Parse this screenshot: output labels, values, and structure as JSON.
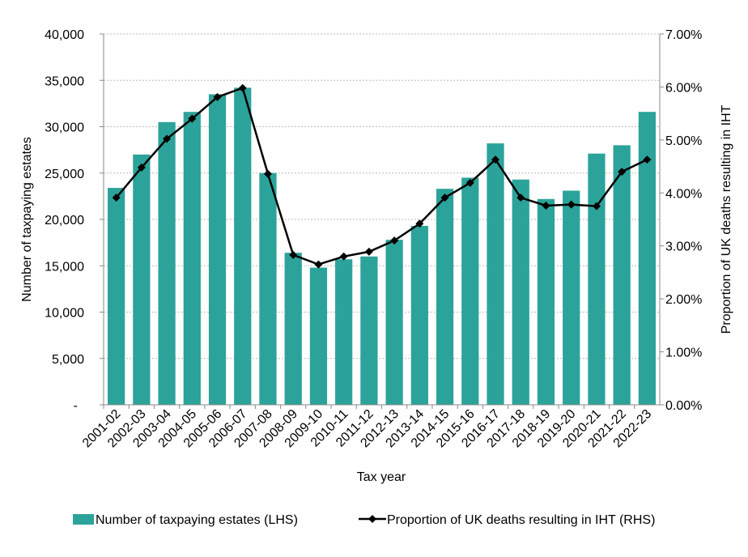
{
  "chart_data": {
    "type": "bar+line",
    "categories": [
      "2001-02",
      "2002-03",
      "2003-04",
      "2004-05",
      "2005-06",
      "2006-07",
      "2007-08",
      "2008-09",
      "2009-10",
      "2010-11",
      "2011-12",
      "2012-13",
      "2013-14",
      "2014-15",
      "2015-16",
      "2016-17",
      "2017-18",
      "2018-19",
      "2019-20",
      "2020-21",
      "2021-22",
      "2022-23"
    ],
    "series": [
      {
        "name": "Number of taxpaying estates (LHS)",
        "type": "bar",
        "axis": "left",
        "color": "#2ca39a",
        "values": [
          23400,
          27000,
          30500,
          31600,
          33500,
          34200,
          25000,
          16400,
          14800,
          15700,
          16000,
          17800,
          19300,
          23300,
          24500,
          28200,
          24300,
          22200,
          23100,
          27100,
          28000,
          31600
        ]
      },
      {
        "name": "Proportion of UK deaths resulting in IHT (RHS)",
        "type": "line",
        "axis": "right",
        "color": "#000000",
        "values": [
          3.91,
          4.48,
          5.02,
          5.4,
          5.81,
          5.98,
          4.36,
          2.83,
          2.65,
          2.8,
          2.89,
          3.1,
          3.42,
          3.91,
          4.19,
          4.63,
          3.91,
          3.76,
          3.78,
          3.75,
          4.4,
          4.63
        ]
      }
    ],
    "xlabel": "Tax year",
    "ylabel": "Number of taxpaying estates",
    "y2label": "Proportion of UK deaths resulting in IHT",
    "ylim": [
      0,
      40000
    ],
    "y2lim": [
      0,
      7
    ],
    "yticks": [
      "-",
      "5,000",
      "10,000",
      "15,000",
      "20,000",
      "25,000",
      "30,000",
      "35,000",
      "40,000"
    ],
    "y2ticks": [
      "0.00%",
      "1.00%",
      "2.00%",
      "3.00%",
      "4.00%",
      "5.00%",
      "6.00%",
      "7.00%"
    ],
    "grid": true,
    "legend": "bottom"
  }
}
